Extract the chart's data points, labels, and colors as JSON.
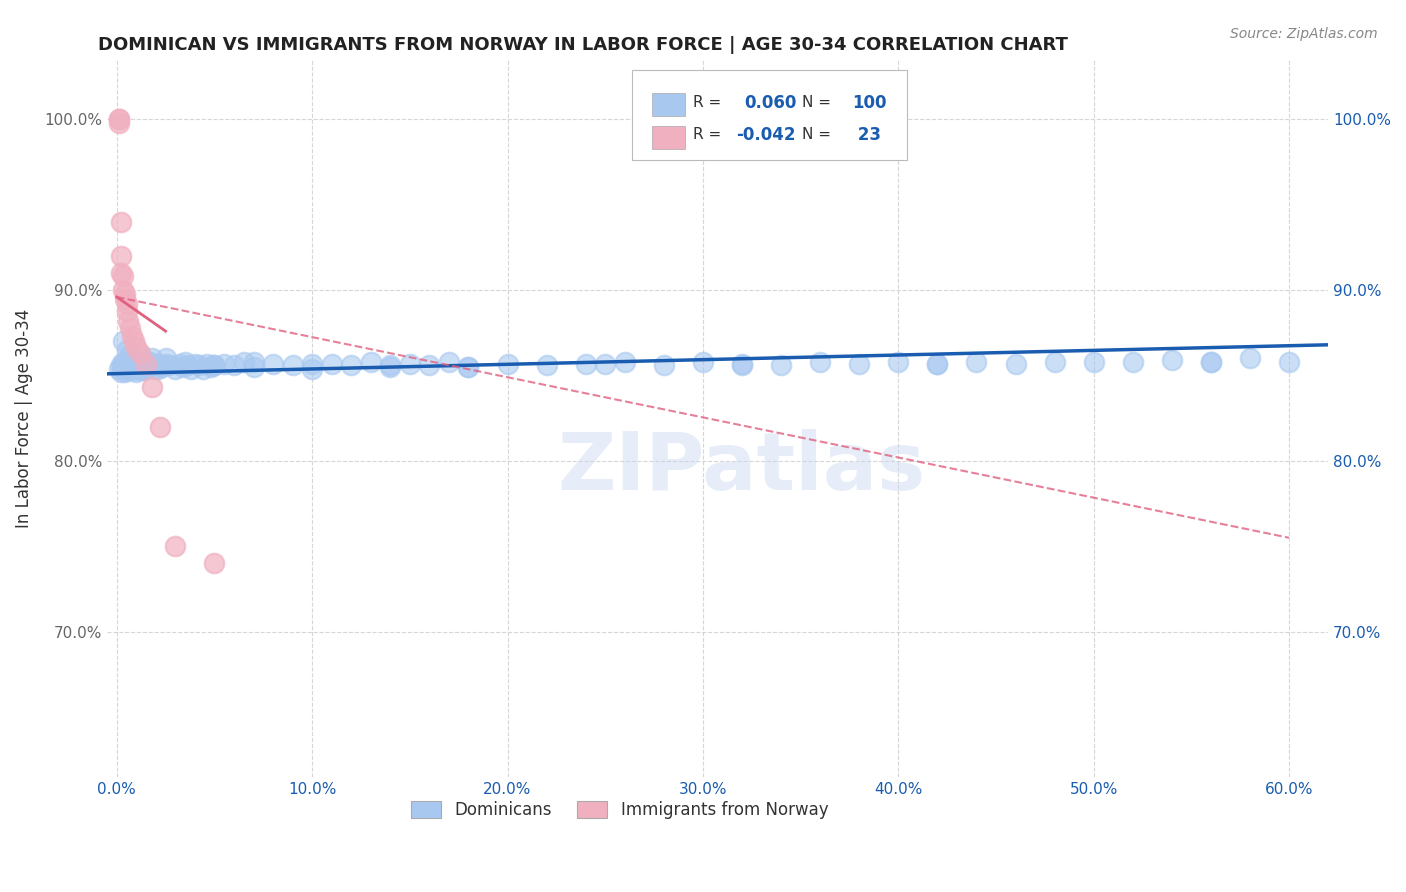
{
  "title": "DOMINICAN VS IMMIGRANTS FROM NORWAY IN LABOR FORCE | AGE 30-34 CORRELATION CHART",
  "source": "Source: ZipAtlas.com",
  "ylabel": "In Labor Force | Age 30-34",
  "xlim": [
    -0.005,
    0.62
  ],
  "ylim": [
    0.615,
    1.035
  ],
  "blue_color": "#A8C8F0",
  "pink_color": "#F0B0C0",
  "blue_line_color": "#1A5CB0",
  "pink_line_color": "#E06080",
  "grid_color": "#CCCCCC",
  "watermark": "ZIPatlas",
  "blue_line_y0": 0.851,
  "blue_line_y1": 0.868,
  "pink_line_x0": 0.0,
  "pink_line_x1": 0.07,
  "pink_line_y0": 0.896,
  "pink_line_y1": 0.838,
  "blue_scatter_x": [
    0.001,
    0.002,
    0.002,
    0.003,
    0.003,
    0.004,
    0.004,
    0.005,
    0.005,
    0.006,
    0.006,
    0.007,
    0.007,
    0.008,
    0.008,
    0.009,
    0.009,
    0.01,
    0.01,
    0.011,
    0.011,
    0.012,
    0.012,
    0.013,
    0.013,
    0.014,
    0.014,
    0.015,
    0.016,
    0.017,
    0.018,
    0.019,
    0.02,
    0.021,
    0.022,
    0.023,
    0.025,
    0.027,
    0.03,
    0.032,
    0.034,
    0.036,
    0.038,
    0.04,
    0.042,
    0.044,
    0.046,
    0.048,
    0.05,
    0.055,
    0.06,
    0.065,
    0.07,
    0.08,
    0.09,
    0.1,
    0.11,
    0.12,
    0.13,
    0.14,
    0.15,
    0.16,
    0.17,
    0.18,
    0.2,
    0.22,
    0.24,
    0.26,
    0.28,
    0.3,
    0.32,
    0.34,
    0.36,
    0.38,
    0.4,
    0.42,
    0.44,
    0.46,
    0.48,
    0.5,
    0.52,
    0.54,
    0.56,
    0.58,
    0.6,
    0.003,
    0.005,
    0.007,
    0.012,
    0.018,
    0.025,
    0.035,
    0.05,
    0.07,
    0.1,
    0.14,
    0.18,
    0.25,
    0.32,
    0.42,
    0.56
  ],
  "blue_scatter_y": [
    0.854,
    0.856,
    0.852,
    0.855,
    0.858,
    0.856,
    0.852,
    0.856,
    0.853,
    0.855,
    0.858,
    0.854,
    0.857,
    0.856,
    0.853,
    0.855,
    0.858,
    0.855,
    0.852,
    0.856,
    0.854,
    0.857,
    0.853,
    0.856,
    0.854,
    0.857,
    0.853,
    0.855,
    0.856,
    0.858,
    0.857,
    0.854,
    0.856,
    0.854,
    0.857,
    0.855,
    0.857,
    0.856,
    0.854,
    0.857,
    0.855,
    0.856,
    0.854,
    0.857,
    0.856,
    0.854,
    0.857,
    0.855,
    0.856,
    0.857,
    0.856,
    0.858,
    0.855,
    0.857,
    0.856,
    0.854,
    0.857,
    0.856,
    0.858,
    0.855,
    0.857,
    0.856,
    0.858,
    0.855,
    0.857,
    0.856,
    0.857,
    0.858,
    0.856,
    0.858,
    0.857,
    0.856,
    0.858,
    0.857,
    0.858,
    0.857,
    0.858,
    0.857,
    0.858,
    0.858,
    0.858,
    0.859,
    0.858,
    0.86,
    0.858,
    0.87,
    0.865,
    0.862,
    0.862,
    0.86,
    0.86,
    0.858,
    0.856,
    0.858,
    0.857,
    0.856,
    0.855,
    0.857,
    0.856,
    0.857,
    0.858
  ],
  "pink_scatter_x": [
    0.001,
    0.001,
    0.001,
    0.002,
    0.002,
    0.002,
    0.003,
    0.003,
    0.004,
    0.004,
    0.005,
    0.005,
    0.006,
    0.007,
    0.008,
    0.009,
    0.01,
    0.012,
    0.015,
    0.018,
    0.022,
    0.03,
    0.05
  ],
  "pink_scatter_y": [
    1.0,
    1.0,
    0.998,
    0.94,
    0.92,
    0.91,
    0.908,
    0.9,
    0.898,
    0.895,
    0.892,
    0.888,
    0.882,
    0.878,
    0.873,
    0.87,
    0.867,
    0.863,
    0.857,
    0.843,
    0.82,
    0.75,
    0.74
  ],
  "xticks": [
    0.0,
    0.1,
    0.2,
    0.3,
    0.4,
    0.5,
    0.6
  ],
  "xtick_labels": [
    "0.0%",
    "10.0%",
    "20.0%",
    "30.0%",
    "40.0%",
    "50.0%",
    "60.0%"
  ],
  "yticks": [
    0.7,
    0.8,
    0.9,
    1.0
  ],
  "ytick_labels": [
    "70.0%",
    "80.0%",
    "90.0%",
    "100.0%"
  ]
}
